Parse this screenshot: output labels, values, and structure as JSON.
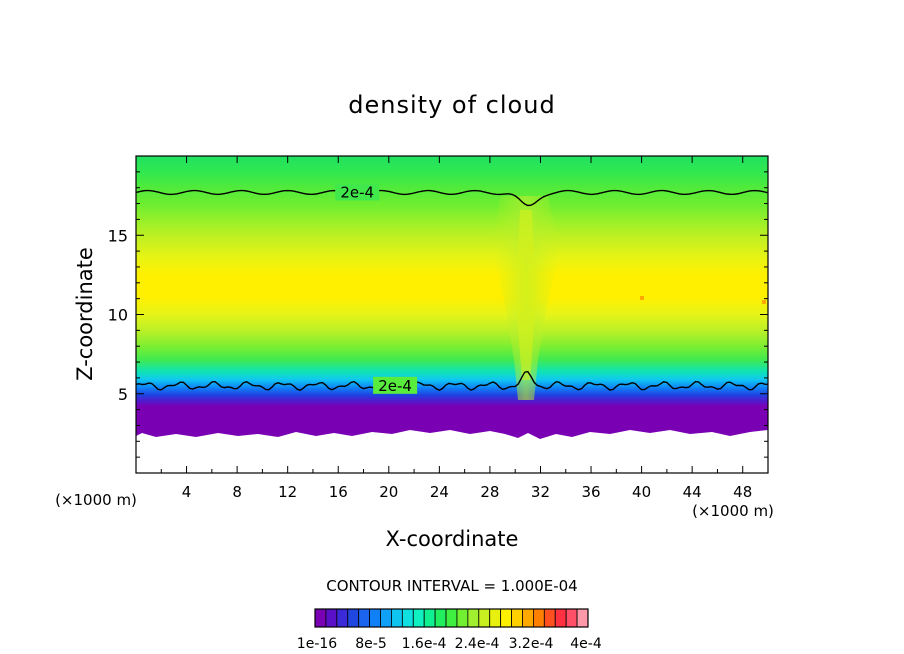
{
  "chart_data": {
    "type": "contour",
    "title": "density of cloud",
    "xlabel": "X-coordinate",
    "ylabel": "Z-coordinate",
    "x_unit_label": "(×1000 m)",
    "z_unit_label": "(×1000 m)",
    "xlim": [
      0,
      50
    ],
    "ylim": [
      0,
      20
    ],
    "x_ticks": [
      4,
      8,
      12,
      16,
      20,
      24,
      28,
      32,
      36,
      40,
      44,
      48
    ],
    "y_ticks": [
      5,
      10,
      15
    ],
    "contour_interval_text": "CONTOUR INTERVAL = 1.000E-04",
    "contour_lines": [
      {
        "label": "2e-4",
        "label_x": 17.5,
        "z_base": 17.7
      },
      {
        "label": "2e-4",
        "label_x": 20.5,
        "z_base": 5.5
      }
    ],
    "colorbar": {
      "colors": [
        "#7a00b4",
        "#5a10c8",
        "#3a2ad8",
        "#2048e0",
        "#1a64f0",
        "#1080f8",
        "#10a0f8",
        "#10c4f0",
        "#10e0e0",
        "#10f0c0",
        "#10f090",
        "#20f060",
        "#40f040",
        "#70f030",
        "#a0f030",
        "#c8f020",
        "#e8f010",
        "#fff000",
        "#ffd000",
        "#ffa800",
        "#ff8000",
        "#ff5020",
        "#ff3040",
        "#ff5068",
        "#ff98a8"
      ],
      "labels": [
        "1e-16",
        "8e-5",
        "1.6e-4",
        "2.4e-4",
        "3.2e-4",
        "4e-4"
      ]
    }
  }
}
